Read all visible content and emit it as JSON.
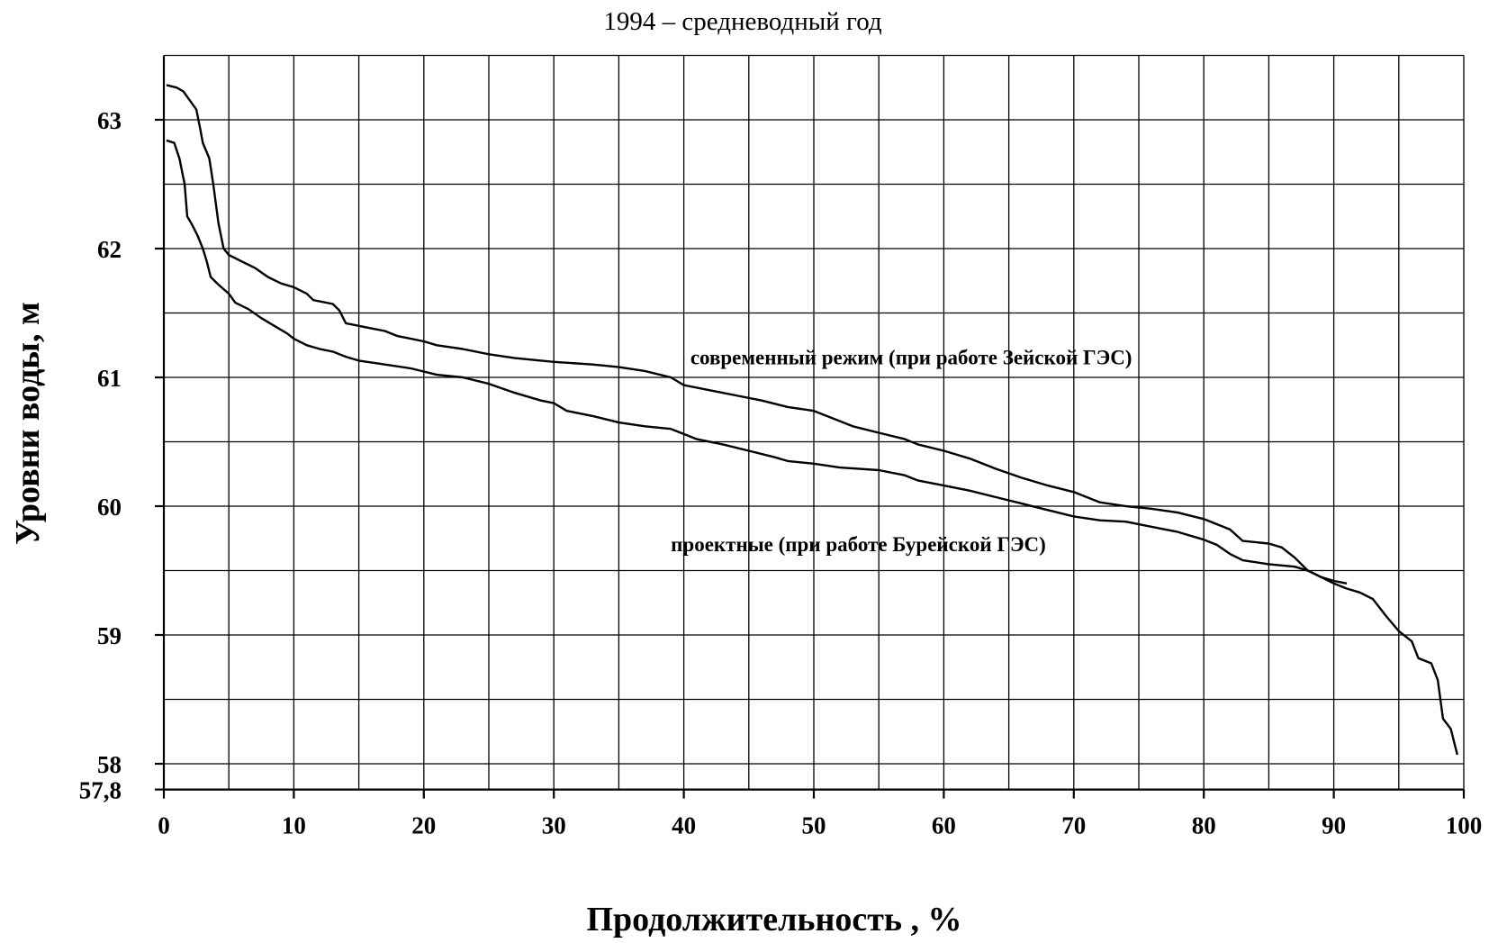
{
  "chart_data": {
    "type": "line",
    "title": "1994 – средневодный год",
    "xlabel": "Продолжительность ,  %",
    "ylabel": "Уровни воды, м",
    "xlim": [
      0,
      100
    ],
    "ylim": [
      57.8,
      63.5
    ],
    "x_ticks": [
      0,
      10,
      20,
      30,
      40,
      50,
      60,
      70,
      80,
      90,
      100
    ],
    "x_tick_labels": [
      "0",
      "10",
      "20",
      "30",
      "40",
      "50",
      "60",
      "70",
      "80",
      "90",
      "100"
    ],
    "y_ticks": [
      57.8,
      58,
      59,
      60,
      61,
      62,
      63
    ],
    "y_tick_labels": [
      "57,8",
      "58",
      "59",
      "60",
      "61",
      "62",
      "63"
    ],
    "grid": true,
    "annotations": [
      {
        "text": "современный режим (при работе Зейской ГЭС)",
        "x": 40.5,
        "y": 61.1
      },
      {
        "text": "проектные (при работе Бурейской ГЭС)",
        "x": 39,
        "y": 59.65
      }
    ],
    "series": [
      {
        "points": [
          [
            0.2,
            63.27
          ],
          [
            1.0,
            63.25
          ],
          [
            1.5,
            63.22
          ],
          [
            2.0,
            63.15
          ],
          [
            2.5,
            63.08
          ],
          [
            2.8,
            62.93
          ],
          [
            3.0,
            62.82
          ],
          [
            3.5,
            62.7
          ],
          [
            3.8,
            62.5
          ],
          [
            4.2,
            62.2
          ],
          [
            4.6,
            62.0
          ],
          [
            5.0,
            61.95
          ],
          [
            6.0,
            61.9
          ],
          [
            7.0,
            61.85
          ],
          [
            8.0,
            61.78
          ],
          [
            9.0,
            61.73
          ],
          [
            10.0,
            61.7
          ],
          [
            11.0,
            61.65
          ],
          [
            11.5,
            61.6
          ],
          [
            13.0,
            61.57
          ],
          [
            13.5,
            61.52
          ],
          [
            14.0,
            61.42
          ],
          [
            15.0,
            61.4
          ],
          [
            16.0,
            61.38
          ],
          [
            17.0,
            61.36
          ],
          [
            18.0,
            61.32
          ],
          [
            19.0,
            61.3
          ],
          [
            20.0,
            61.28
          ],
          [
            21.0,
            61.25
          ],
          [
            23.0,
            61.22
          ],
          [
            25.0,
            61.18
          ],
          [
            27.0,
            61.15
          ],
          [
            30.0,
            61.12
          ],
          [
            33.0,
            61.1
          ],
          [
            35.0,
            61.08
          ],
          [
            37.0,
            61.05
          ],
          [
            39.0,
            61.0
          ],
          [
            40.0,
            60.94
          ],
          [
            42.0,
            60.9
          ],
          [
            44.0,
            60.86
          ],
          [
            46.0,
            60.82
          ],
          [
            48.0,
            60.77
          ],
          [
            50.0,
            60.74
          ],
          [
            51.0,
            60.7
          ],
          [
            53.0,
            60.62
          ],
          [
            55.0,
            60.57
          ],
          [
            57.0,
            60.52
          ],
          [
            58.0,
            60.48
          ],
          [
            60.0,
            60.43
          ],
          [
            62.0,
            60.37
          ],
          [
            64.0,
            60.29
          ],
          [
            66.0,
            60.22
          ],
          [
            68.0,
            60.16
          ],
          [
            70.0,
            60.11
          ],
          [
            72.0,
            60.03
          ],
          [
            74.0,
            60.0
          ],
          [
            76.0,
            59.98
          ],
          [
            78.0,
            59.95
          ],
          [
            80.0,
            59.9
          ],
          [
            82.0,
            59.82
          ],
          [
            83.0,
            59.73
          ],
          [
            85.0,
            59.71
          ],
          [
            86.0,
            59.68
          ],
          [
            87.0,
            59.6
          ],
          [
            88.0,
            59.5
          ],
          [
            89.0,
            59.45
          ],
          [
            90.0,
            59.4
          ],
          [
            91.0,
            59.36
          ],
          [
            92.0,
            59.33
          ],
          [
            93.0,
            59.28
          ],
          [
            94.0,
            59.15
          ],
          [
            95.0,
            59.03
          ],
          [
            96.0,
            58.95
          ],
          [
            96.5,
            58.82
          ],
          [
            97.5,
            58.78
          ],
          [
            98.0,
            58.65
          ],
          [
            98.4,
            58.35
          ],
          [
            99.0,
            58.27
          ],
          [
            99.5,
            58.07
          ]
        ]
      },
      {
        "points": [
          [
            0.2,
            62.84
          ],
          [
            0.8,
            62.82
          ],
          [
            1.2,
            62.7
          ],
          [
            1.6,
            62.5
          ],
          [
            1.8,
            62.25
          ],
          [
            2.2,
            62.18
          ],
          [
            2.6,
            62.1
          ],
          [
            3.0,
            62.0
          ],
          [
            3.3,
            61.9
          ],
          [
            3.6,
            61.78
          ],
          [
            4.2,
            61.72
          ],
          [
            5.0,
            61.65
          ],
          [
            5.5,
            61.58
          ],
          [
            6.5,
            61.53
          ],
          [
            7.5,
            61.46
          ],
          [
            8.5,
            61.4
          ],
          [
            9.5,
            61.34
          ],
          [
            10.0,
            61.3
          ],
          [
            11.0,
            61.25
          ],
          [
            12.0,
            61.22
          ],
          [
            13.0,
            61.2
          ],
          [
            14.0,
            61.16
          ],
          [
            15.0,
            61.13
          ],
          [
            17.0,
            61.1
          ],
          [
            19.0,
            61.07
          ],
          [
            21.0,
            61.02
          ],
          [
            23.0,
            61.0
          ],
          [
            25.0,
            60.95
          ],
          [
            27.0,
            60.88
          ],
          [
            29.0,
            60.82
          ],
          [
            30.0,
            60.8
          ],
          [
            31.0,
            60.74
          ],
          [
            33.0,
            60.7
          ],
          [
            35.0,
            60.65
          ],
          [
            37.0,
            60.62
          ],
          [
            39.0,
            60.6
          ],
          [
            40.0,
            60.56
          ],
          [
            41.0,
            60.52
          ],
          [
            43.0,
            60.48
          ],
          [
            45.0,
            60.43
          ],
          [
            47.0,
            60.38
          ],
          [
            48.0,
            60.35
          ],
          [
            50.0,
            60.33
          ],
          [
            52.0,
            60.3
          ],
          [
            55.0,
            60.28
          ],
          [
            57.0,
            60.24
          ],
          [
            58.0,
            60.2
          ],
          [
            60.0,
            60.16
          ],
          [
            62.0,
            60.12
          ],
          [
            64.0,
            60.07
          ],
          [
            66.0,
            60.02
          ],
          [
            68.0,
            59.97
          ],
          [
            70.0,
            59.92
          ],
          [
            72.0,
            59.89
          ],
          [
            74.0,
            59.88
          ],
          [
            76.0,
            59.84
          ],
          [
            78.0,
            59.8
          ],
          [
            80.0,
            59.74
          ],
          [
            81.0,
            59.7
          ],
          [
            82.0,
            59.63
          ],
          [
            83.0,
            59.58
          ],
          [
            85.0,
            59.55
          ],
          [
            87.0,
            59.53
          ],
          [
            88.0,
            59.5
          ],
          [
            89.0,
            59.45
          ],
          [
            90.0,
            59.42
          ],
          [
            91.0,
            59.4
          ]
        ]
      }
    ]
  }
}
